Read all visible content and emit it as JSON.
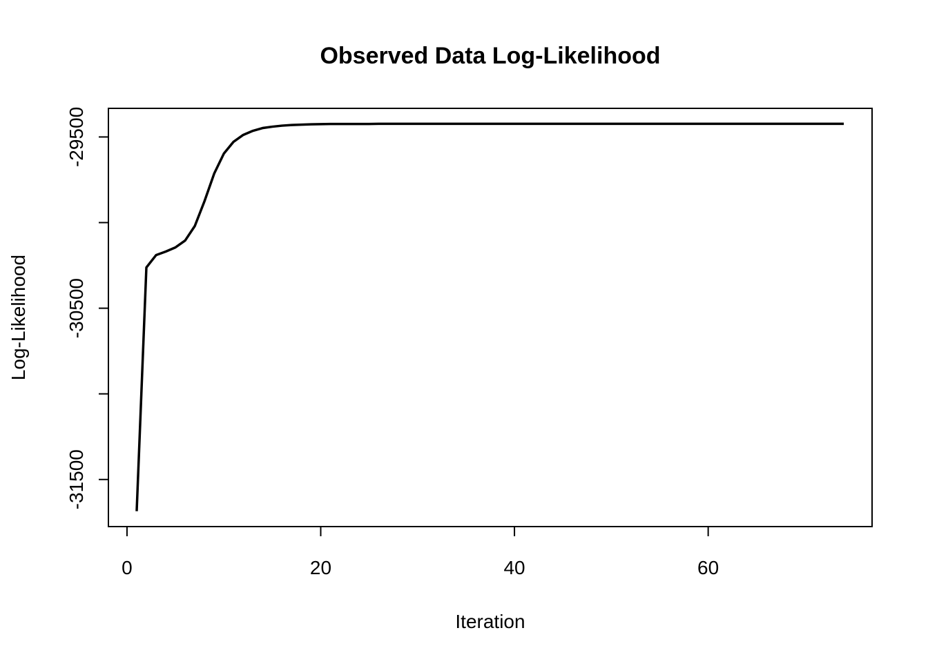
{
  "chart_data": {
    "type": "line",
    "title": "Observed Data Log-Likelihood",
    "x_label": "Iteration",
    "y_label": "Log-Likelihood",
    "x": [
      1,
      2,
      3,
      4,
      5,
      6,
      7,
      8,
      9,
      10,
      11,
      12,
      13,
      14,
      15,
      16,
      17,
      18,
      19,
      20,
      21,
      22,
      23,
      24,
      25,
      26,
      27,
      28,
      29,
      30,
      31,
      32,
      33,
      34,
      35,
      36,
      37,
      38,
      39,
      40,
      41,
      42,
      43,
      44,
      45,
      46,
      47,
      48,
      49,
      50,
      51,
      52,
      53,
      54,
      55,
      56,
      57,
      58,
      59,
      60,
      61,
      62,
      63,
      64,
      65,
      66,
      67,
      68,
      69,
      70,
      71,
      72,
      73,
      74
    ],
    "values": [
      -31685,
      -30262,
      -30190,
      -30169,
      -30145,
      -30105,
      -30020,
      -29875,
      -29714,
      -29597,
      -29528,
      -29488,
      -29464,
      -29448,
      -29440,
      -29434,
      -29430,
      -29428,
      -29426,
      -29425,
      -29424,
      -29424,
      -29424,
      -29424,
      -29424,
      -29423,
      -29423,
      -29423,
      -29423,
      -29423,
      -29423,
      -29423,
      -29423,
      -29423,
      -29423,
      -29423,
      -29423,
      -29423,
      -29423,
      -29423,
      -29423,
      -29423,
      -29423,
      -29423,
      -29423,
      -29423,
      -29423,
      -29423,
      -29423,
      -29423,
      -29423,
      -29423,
      -29423,
      -29423,
      -29423,
      -29423,
      -29423,
      -29423,
      -29423,
      -29423,
      -29423,
      -29423,
      -29423,
      -29423,
      -29423,
      -29423,
      -29423,
      -29423,
      -29423,
      -29423,
      -29423,
      -29423,
      -29423,
      -29423
    ],
    "color": "#000000",
    "xlim": [
      -1.92,
      76.92
    ],
    "xticks": [
      0,
      20,
      40,
      60
    ],
    "ylim": [
      -31775,
      -29333
    ],
    "yticks": [
      -31500,
      {
        "value": -31000,
        "label": null
      },
      -30500,
      {
        "value": -30000,
        "label": null
      },
      -29500
    ]
  }
}
